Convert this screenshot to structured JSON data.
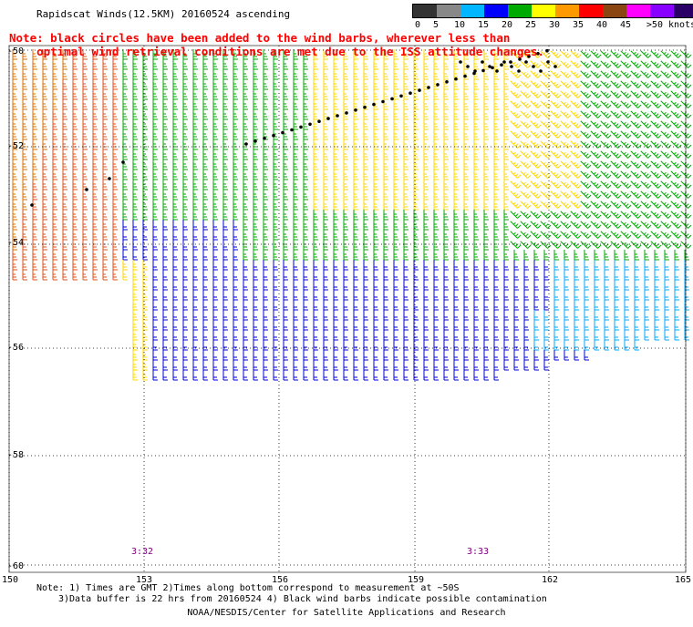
{
  "title": "Rapidscat Winds(12.5KM) 20160524 ascending",
  "note": {
    "line1": "Note: black circles have been added to the wind barbs, wherever less than",
    "line2": "optimal wind retrieval conditions are met due to the ISS attitude changes."
  },
  "colorbar": {
    "labels": [
      "0",
      "5",
      "10",
      "15",
      "20",
      "25",
      "30",
      "35",
      "40",
      "45",
      ">50 knots"
    ],
    "colors": [
      "#333333",
      "#888888",
      "#00b7ff",
      "#0000ff",
      "#00aa00",
      "#ffff00",
      "#ff9900",
      "#ff0000",
      "#8b4513",
      "#ff00ff",
      "#8800ff",
      "#2a0066"
    ]
  },
  "map": {
    "lat_labels": [
      "-50",
      "-52",
      "-54",
      "-56",
      "-58",
      "-60"
    ],
    "lon_labels": [
      "150",
      "153",
      "156",
      "159",
      "162",
      "165"
    ],
    "time_labels": [
      "3:32",
      "3:33"
    ],
    "barb_colors": {
      "orange": "#d96f00",
      "red_orange": "#e0501a",
      "yellow": "#ffd700",
      "green": "#00aa00",
      "blue": "#0000dd",
      "cyan": "#00aaff",
      "black": "#000000"
    }
  },
  "footnote": {
    "line1": "Note: 1) Times are GMT 2)Times along bottom correspond to measurement at ~50S",
    "line2": "3)Data buffer is 22 hrs from 20160524 4) Black wind barbs indicate possible contamination"
  },
  "credit": "NOAA/NESDIS/Center for Satellite Applications and Research"
}
